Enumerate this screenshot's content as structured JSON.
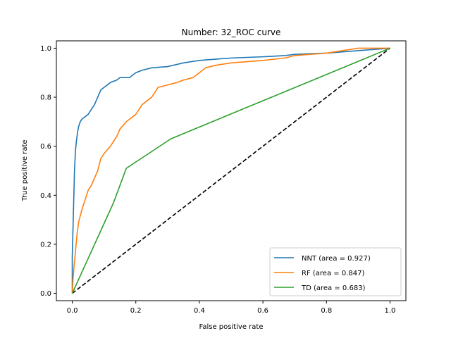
{
  "chart_data": {
    "type": "line",
    "title": "Number: 32_ROC curve",
    "xlabel": "False positive rate",
    "ylabel": "True positive rate",
    "xlim": [
      -0.05,
      1.05
    ],
    "ylim": [
      -0.03,
      1.03
    ],
    "xticks": [
      0.0,
      0.2,
      0.4,
      0.6,
      0.8,
      1.0
    ],
    "yticks": [
      0.0,
      0.2,
      0.4,
      0.6,
      0.8,
      1.0
    ],
    "tick_labels_x": [
      "0.0",
      "0.2",
      "0.4",
      "0.6",
      "0.8",
      "1.0"
    ],
    "tick_labels_y": [
      "0.0",
      "0.2",
      "0.4",
      "0.6",
      "0.8",
      "1.0"
    ],
    "grid": false,
    "legend_position": "lower-right",
    "series": [
      {
        "name": "NNT (area = 0.927)",
        "color": "#1f77b4",
        "style": "solid",
        "x": [
          0.0,
          0.0,
          0.003,
          0.005,
          0.007,
          0.01,
          0.013,
          0.017,
          0.02,
          0.025,
          0.03,
          0.04,
          0.05,
          0.06,
          0.07,
          0.08,
          0.09,
          0.1,
          0.12,
          0.14,
          0.15,
          0.18,
          0.2,
          0.22,
          0.25,
          0.3,
          0.35,
          0.4,
          0.45,
          0.5,
          0.6,
          0.67,
          0.7,
          0.8,
          0.9,
          1.0
        ],
        "y": [
          0.0,
          0.15,
          0.3,
          0.4,
          0.5,
          0.58,
          0.62,
          0.66,
          0.68,
          0.7,
          0.71,
          0.72,
          0.73,
          0.75,
          0.77,
          0.8,
          0.83,
          0.84,
          0.86,
          0.87,
          0.88,
          0.88,
          0.9,
          0.91,
          0.92,
          0.925,
          0.94,
          0.95,
          0.955,
          0.96,
          0.965,
          0.97,
          0.975,
          0.98,
          0.99,
          1.0
        ]
      },
      {
        "name": "RF (area = 0.847)",
        "color": "#ff7f0e",
        "style": "solid",
        "x": [
          0.0,
          0.002,
          0.005,
          0.01,
          0.015,
          0.02,
          0.03,
          0.04,
          0.05,
          0.06,
          0.07,
          0.08,
          0.09,
          0.1,
          0.12,
          0.14,
          0.15,
          0.17,
          0.2,
          0.22,
          0.25,
          0.27,
          0.3,
          0.33,
          0.35,
          0.38,
          0.4,
          0.42,
          0.45,
          0.5,
          0.6,
          0.67,
          0.7,
          0.75,
          0.8,
          0.85,
          0.9,
          1.0
        ],
        "y": [
          0.0,
          0.05,
          0.1,
          0.17,
          0.24,
          0.29,
          0.34,
          0.38,
          0.42,
          0.44,
          0.47,
          0.5,
          0.55,
          0.57,
          0.6,
          0.64,
          0.67,
          0.7,
          0.73,
          0.77,
          0.8,
          0.84,
          0.85,
          0.86,
          0.87,
          0.88,
          0.9,
          0.92,
          0.93,
          0.94,
          0.95,
          0.96,
          0.97,
          0.975,
          0.98,
          0.99,
          1.0,
          1.0
        ]
      },
      {
        "name": "TD (area = 0.683)",
        "color": "#2ca02c",
        "style": "solid",
        "x": [
          0.0,
          0.13,
          0.17,
          0.31,
          1.0
        ],
        "y": [
          0.0,
          0.37,
          0.51,
          0.63,
          1.0
        ]
      },
      {
        "color": "#000000",
        "style": "dashed",
        "x": [
          0.0,
          1.0
        ],
        "y": [
          0.0,
          1.0
        ]
      }
    ]
  }
}
